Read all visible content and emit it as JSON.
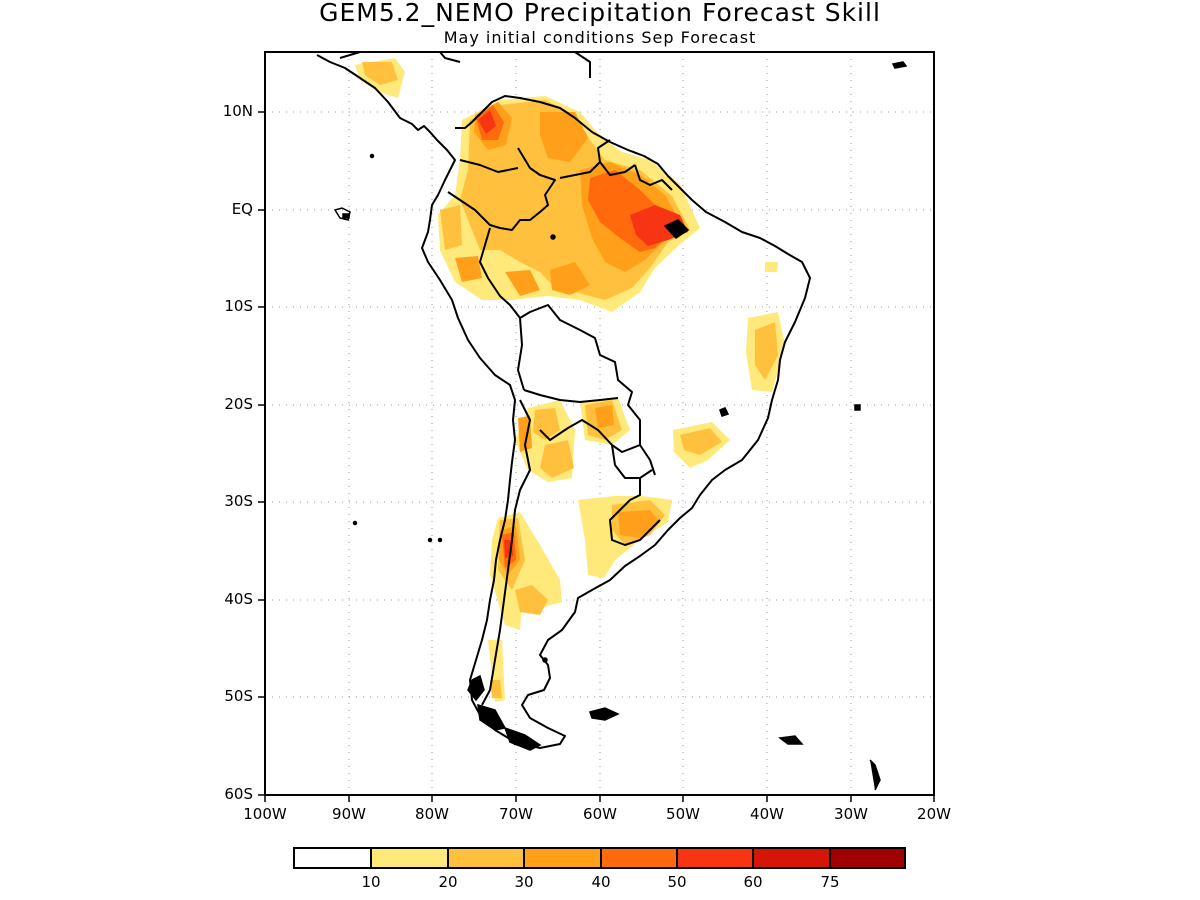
{
  "title": "GEM5.2_NEMO Precipitation Forecast Skill",
  "subtitle": "May initial conditions  Sep Forecast",
  "axes": {
    "y_ticks": [
      "10N",
      "EQ",
      "10S",
      "20S",
      "30S",
      "40S",
      "50S",
      "60S"
    ],
    "y_values": [
      10,
      0,
      -10,
      -20,
      -30,
      -40,
      -50,
      -60
    ],
    "x_ticks": [
      "100W",
      "90W",
      "80W",
      "70W",
      "60W",
      "50W",
      "40W",
      "30W",
      "20W"
    ],
    "x_values": [
      -100,
      -90,
      -80,
      -70,
      -60,
      -50,
      -40,
      -30,
      -20
    ],
    "lon_range": [
      -100,
      -20
    ],
    "lat_range": [
      -60,
      15
    ],
    "grid": "dotted"
  },
  "colorbar": {
    "labels": [
      "10",
      "20",
      "30",
      "40",
      "50",
      "60",
      "75"
    ],
    "colors": [
      "#ffffff",
      "#ffe97a",
      "#ffc13d",
      "#ff9f1a",
      "#ff6a0d",
      "#f73512",
      "#d41508",
      "#a00000"
    ]
  }
}
